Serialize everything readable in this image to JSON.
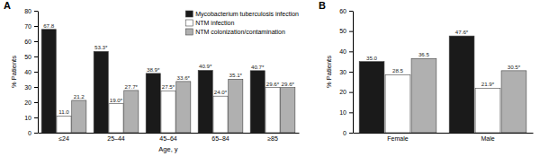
{
  "chart_data": [
    {
      "type": "bar",
      "title": "A",
      "categories": [
        "≤24",
        "25–44",
        "45–64",
        "65–84",
        "≥85"
      ],
      "series": [
        {
          "name": "Mycobacterium tuberculosis infection",
          "color": "#1a1a1a",
          "values": [
            67.8,
            53.3,
            38.9,
            40.9,
            40.7
          ],
          "value_labels": [
            "67.8",
            "53.3*",
            "38.9*",
            "40.9*",
            "40.7*"
          ]
        },
        {
          "name": "NTM infection",
          "color": "#ffffff",
          "values": [
            11.0,
            19.0,
            27.5,
            24.0,
            29.6
          ],
          "value_labels": [
            "11.0",
            "19.0*",
            "27.5*",
            "24.0*",
            "29.6*"
          ]
        },
        {
          "name": "NTM colonization/contamination",
          "color": "#b0b0b0",
          "values": [
            21.2,
            27.7,
            33.6,
            35.1,
            29.6
          ],
          "value_labels": [
            "21.2",
            "27.7*",
            "33.6*",
            "35.1*",
            "29.6*"
          ]
        }
      ],
      "x_label": "Age, y",
      "y_label": "% Patients",
      "ylim": [
        0,
        80
      ],
      "yticks": [
        0,
        10,
        20,
        30,
        40,
        50,
        60,
        70,
        80
      ],
      "data_labels": true,
      "legend": "upper right"
    },
    {
      "type": "bar",
      "title": "B",
      "categories": [
        "Female",
        "Male"
      ],
      "series": [
        {
          "color": "#1a1a1a",
          "values": [
            35.0,
            47.6
          ],
          "value_labels": [
            "35.0",
            "47.6*"
          ]
        },
        {
          "color": "#ffffff",
          "values": [
            28.5,
            21.9
          ],
          "value_labels": [
            "28.5",
            "21.9*"
          ]
        },
        {
          "color": "#b0b0b0",
          "values": [
            36.5,
            30.5
          ],
          "value_labels": [
            "36.5",
            "30.5*"
          ]
        }
      ],
      "y_label": "% Patients",
      "ylim": [
        0,
        60
      ],
      "yticks": [
        0,
        10,
        20,
        30,
        40,
        50,
        60
      ],
      "data_labels": true
    }
  ]
}
